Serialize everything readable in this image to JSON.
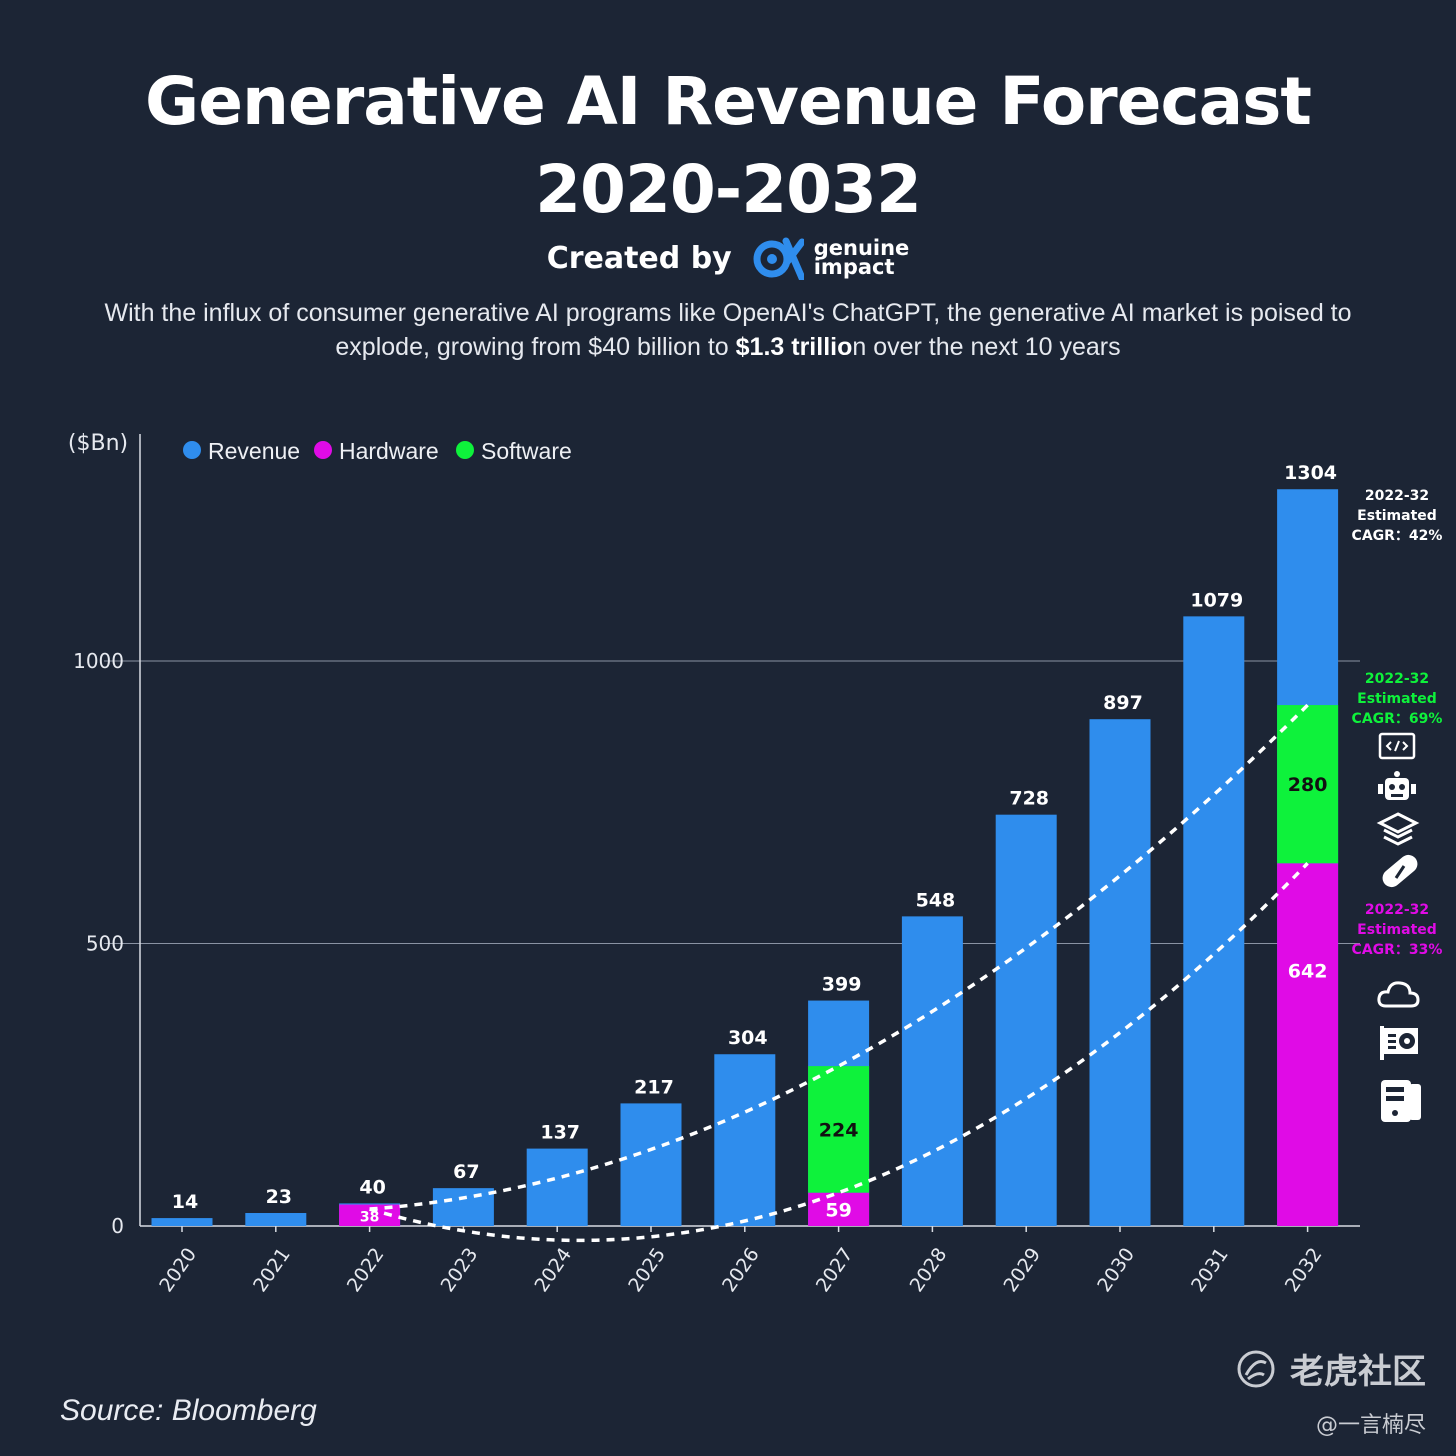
{
  "header": {
    "title_line1": "Generative AI Revenue Forecast",
    "title_line2": "2020-2032",
    "created_by": "Created by",
    "brand_line1": "genuine",
    "brand_line2": "impact",
    "subtitle_part1": "With the influx of consumer generative AI programs like OpenAI's ChatGPT, the generative AI market is poised to explode, growing from $40 billion to ",
    "subtitle_bold": "$1.3 trillio",
    "subtitle_part2": "n over the next 10 years"
  },
  "footer": {
    "source": "Source: Bloomberg",
    "watermark_main": "老虎社区",
    "watermark_sub": "@一言楠尽"
  },
  "colors": {
    "background": "#1c2535",
    "revenue": "#2f8ded",
    "hardware": "#e00be6",
    "software": "#0ef23b",
    "grid": "#8a93a3"
  },
  "chart_data": {
    "type": "bar",
    "ylabel": "($Bn)",
    "ylim": [
      0,
      1350
    ],
    "yticks": [
      0,
      500,
      1000
    ],
    "grid": true,
    "legend_position": "top-left",
    "categories": [
      "2020",
      "2021",
      "2022",
      "2023",
      "2024",
      "2025",
      "2026",
      "2027",
      "2028",
      "2029",
      "2030",
      "2031",
      "2032"
    ],
    "series": [
      {
        "name": "Revenue",
        "values": [
          14,
          23,
          40,
          67,
          137,
          217,
          304,
          399,
          548,
          728,
          897,
          1079,
          1304
        ]
      },
      {
        "name": "Hardware",
        "values": [
          null,
          null,
          38,
          null,
          null,
          null,
          null,
          59,
          null,
          null,
          null,
          null,
          642
        ]
      },
      {
        "name": "Software",
        "values": [
          null,
          null,
          null,
          null,
          null,
          null,
          null,
          224,
          null,
          null,
          null,
          null,
          280
        ]
      }
    ],
    "annotations": [
      {
        "series": "Revenue",
        "lines": [
          "2022-32",
          "Estimated",
          "CAGR：42%"
        ]
      },
      {
        "series": "Software",
        "lines": [
          "2022-32",
          "Estimated",
          "CAGR：69%"
        ]
      },
      {
        "series": "Hardware",
        "lines": [
          "2022-32",
          "Estimated",
          "CAGR：33%"
        ]
      }
    ],
    "trend_lines": [
      {
        "series": "Software",
        "style": "dashed",
        "points": [
          [
            2022,
            30
          ],
          [
            2027,
            283
          ],
          [
            2032,
            922
          ]
        ]
      },
      {
        "series": "Hardware",
        "style": "dashed",
        "points": [
          [
            2022,
            30
          ],
          [
            2027,
            59
          ],
          [
            2032,
            642
          ]
        ]
      }
    ],
    "icons": {
      "software": [
        "code-window-icon",
        "robot-icon",
        "graduation-cap-icon",
        "pill-icon"
      ],
      "hardware": [
        "cloud-icon",
        "gpu-card-icon",
        "server-icon"
      ]
    }
  }
}
